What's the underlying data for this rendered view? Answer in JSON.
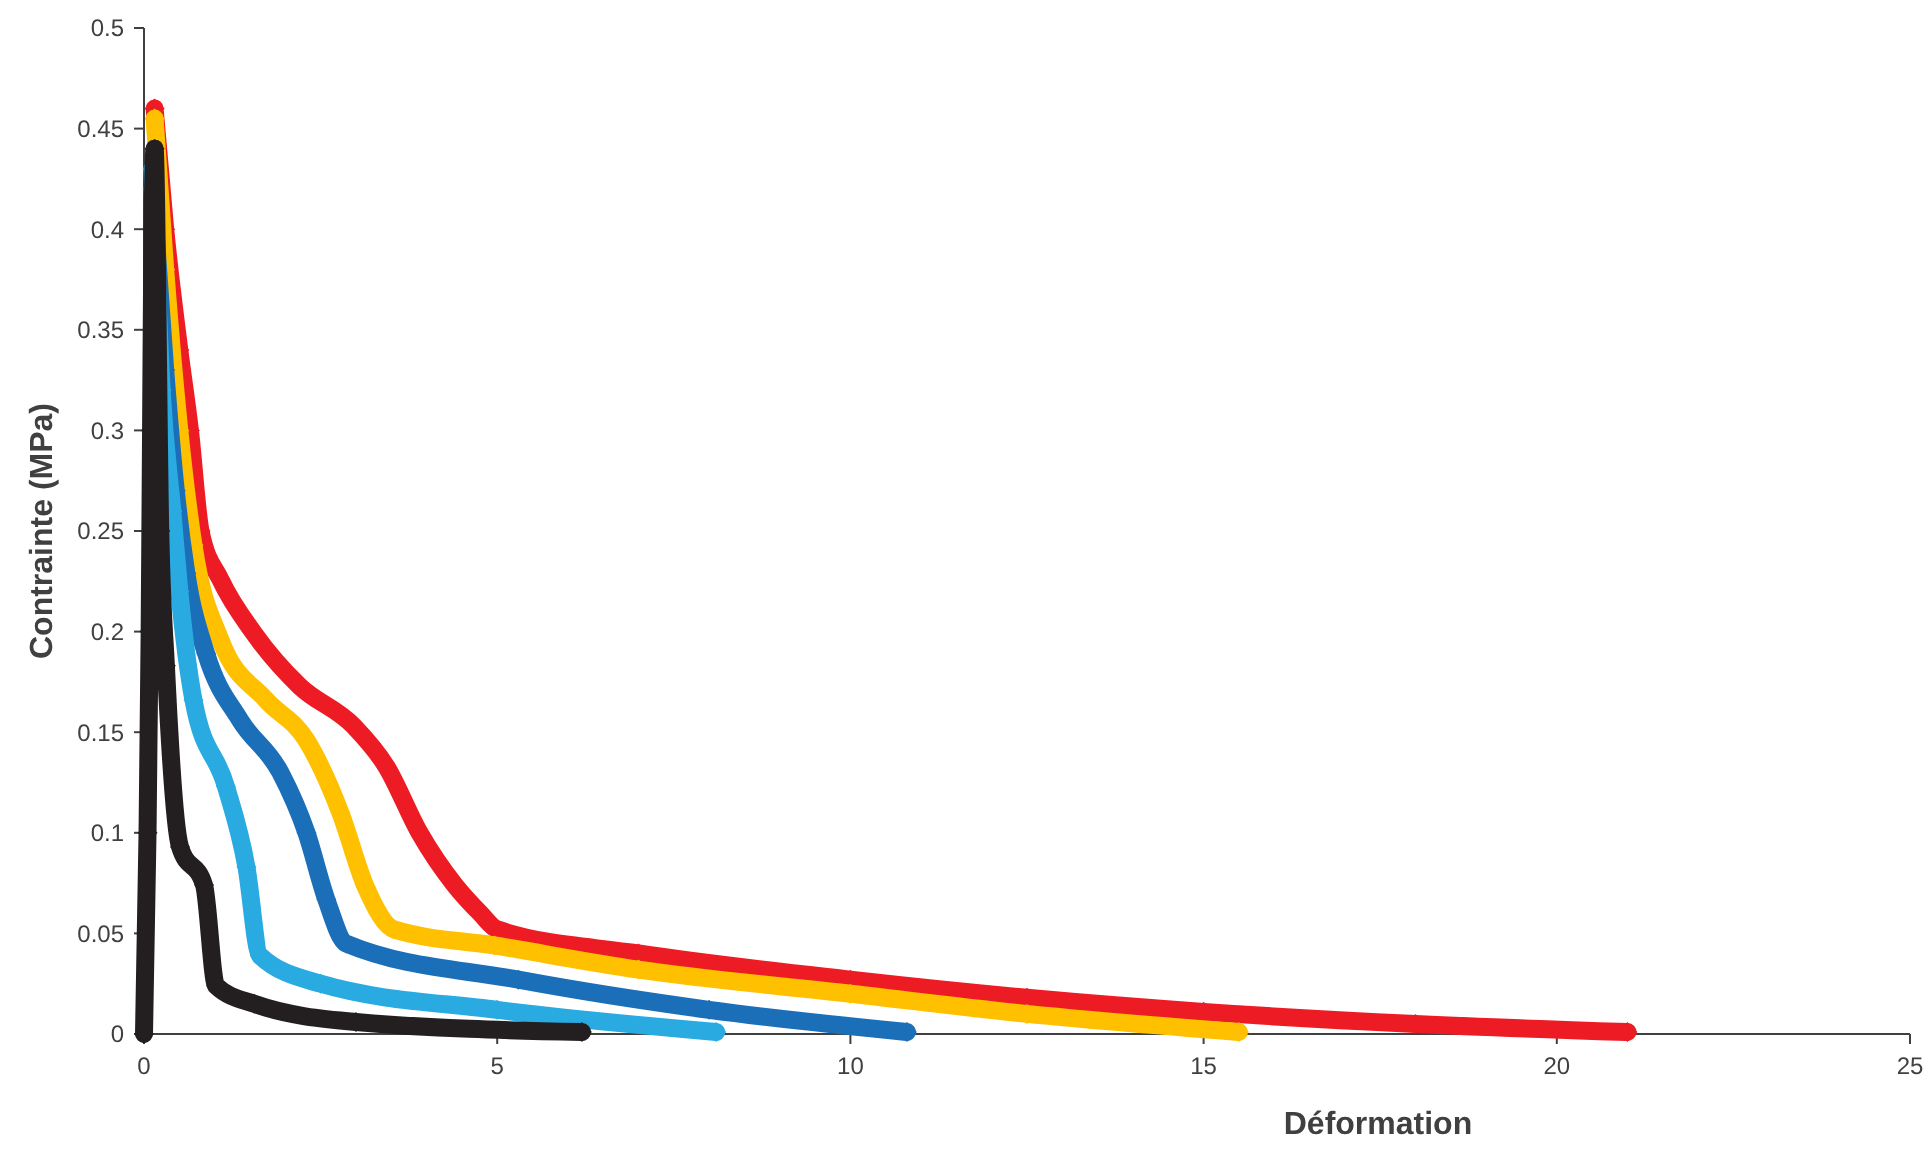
{
  "chart_data": {
    "type": "line",
    "xlabel": "Déformation",
    "ylabel": "Contrainte (MPa)",
    "xlim": [
      0,
      25
    ],
    "xticks": [
      0,
      5,
      10,
      15,
      20,
      25
    ],
    "ylim": [
      0,
      0.5
    ],
    "yticks": [
      0,
      0.05,
      0.1,
      0.15,
      0.2,
      0.25,
      0.3,
      0.35,
      0.4,
      0.45,
      0.5
    ],
    "grid": false,
    "marker": "diamond",
    "line_style": "solid",
    "series": [
      {
        "color": "#ed1c24",
        "x": [
          0.15,
          0.3,
          0.5,
          0.65,
          0.8,
          1.08,
          1.56,
          2.2,
          2.97,
          3.43,
          3.9,
          4.4,
          4.76,
          5,
          7,
          10,
          12.5,
          15,
          18,
          21
        ],
        "values": [
          0.46,
          0.4,
          0.34,
          0.3,
          0.25,
          0.226,
          0.199,
          0.173,
          0.153,
          0.133,
          0.1,
          0.074,
          0.06,
          0.052,
          0.04,
          0.027,
          0.018,
          0.011,
          0.005,
          0.001
        ]
      },
      {
        "color": "#ffc000",
        "x": [
          0.15,
          0.3,
          0.5,
          0.7,
          1.08,
          1.73,
          2.3,
          2.78,
          3.14,
          3.54,
          4.96,
          7,
          10,
          12.5,
          15.5
        ],
        "values": [
          0.455,
          0.38,
          0.3,
          0.243,
          0.196,
          0.166,
          0.146,
          0.11,
          0.073,
          0.052,
          0.044,
          0.032,
          0.02,
          0.01,
          0.001
        ]
      },
      {
        "color": "#1a6fb8",
        "x": [
          0.12,
          0.3,
          0.45,
          0.6,
          0.88,
          1.36,
          1.93,
          2.3,
          2.58,
          2.86,
          5.3,
          8,
          10.8
        ],
        "values": [
          0.42,
          0.33,
          0.27,
          0.229,
          0.189,
          0.156,
          0.13,
          0.1,
          0.067,
          0.045,
          0.027,
          0.012,
          0.001
        ]
      },
      {
        "color": "#29abe2",
        "x": [
          0.12,
          0.25,
          0.4,
          0.5,
          0.7,
          1.16,
          1.45,
          1.64,
          2.5,
          5,
          8.1
        ],
        "values": [
          0.43,
          0.32,
          0.26,
          0.22,
          0.166,
          0.123,
          0.083,
          0.039,
          0.025,
          0.012,
          0.001
        ]
      },
      {
        "color": "#231f20",
        "x": [
          0,
          0.05,
          0.08,
          0.1,
          0.12,
          0.15,
          0.23,
          0.31,
          0.51,
          0.85,
          1.02,
          1.56,
          3,
          6.2
        ],
        "values": [
          0,
          0.1,
          0.2,
          0.3,
          0.4,
          0.44,
          0.25,
          0.183,
          0.093,
          0.074,
          0.024,
          0.015,
          0.006,
          0.001
        ]
      }
    ]
  }
}
